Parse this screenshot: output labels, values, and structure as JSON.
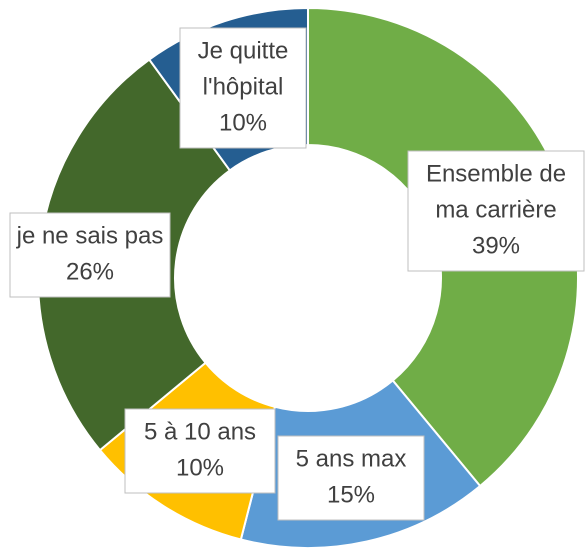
{
  "chart_data": {
    "type": "donut",
    "categories": [
      [
        "Ensemble de",
        "ma carrière"
      ],
      [
        "5 ans max"
      ],
      [
        "5 à 10 ans"
      ],
      [
        "je ne sais pas"
      ],
      [
        "Je quitte",
        "l'hôpital"
      ]
    ],
    "values": [
      39,
      15,
      10,
      26,
      10
    ],
    "value_labels": [
      "39%",
      "15%",
      "10%",
      "26%",
      "10%"
    ],
    "colors": [
      "#70ad47",
      "#5b9bd5",
      "#ffc000",
      "#43682b",
      "#255e91"
    ]
  }
}
